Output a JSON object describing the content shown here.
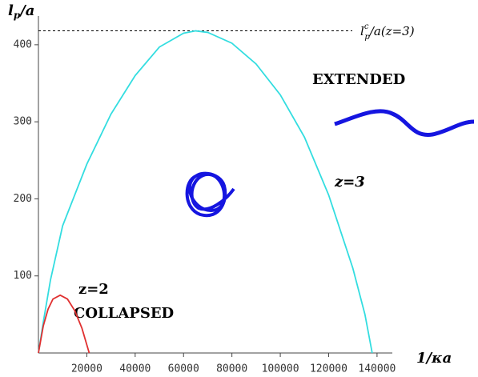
{
  "chart_data": {
    "type": "line",
    "ylabel": {
      "main": "l",
      "sub": "p",
      "rest": "/a"
    },
    "xlabel": "1/κa",
    "xlim": [
      0,
      145000
    ],
    "ylim": [
      0,
      430
    ],
    "xticks": [
      20000,
      40000,
      60000,
      80000,
      100000,
      120000,
      140000
    ],
    "yticks": [
      100,
      200,
      300,
      400
    ],
    "reference_line": {
      "value": 418,
      "label": {
        "main": "l",
        "sup": "c",
        "sub": "p",
        "rest": "/a(z=3)"
      }
    },
    "series": [
      {
        "name": "z=3",
        "color": "#33dde0",
        "x": [
          0,
          2000,
          5000,
          10000,
          20000,
          30000,
          40000,
          50000,
          60000,
          65000,
          70000,
          80000,
          90000,
          100000,
          110000,
          120000,
          130000,
          135000,
          138000
        ],
        "values": [
          0,
          40,
          95,
          165,
          245,
          310,
          360,
          397,
          415,
          418,
          416,
          402,
          375,
          335,
          280,
          205,
          110,
          50,
          0
        ]
      },
      {
        "name": "z=2",
        "color": "#e03030",
        "x": [
          0,
          2000,
          4000,
          6000,
          9000,
          12000,
          15000,
          18000,
          21000
        ],
        "values": [
          0,
          35,
          57,
          70,
          75,
          70,
          55,
          32,
          0
        ]
      }
    ],
    "annotations": {
      "collapsed": "COLLAPSED",
      "extended": "EXTENDED"
    }
  }
}
